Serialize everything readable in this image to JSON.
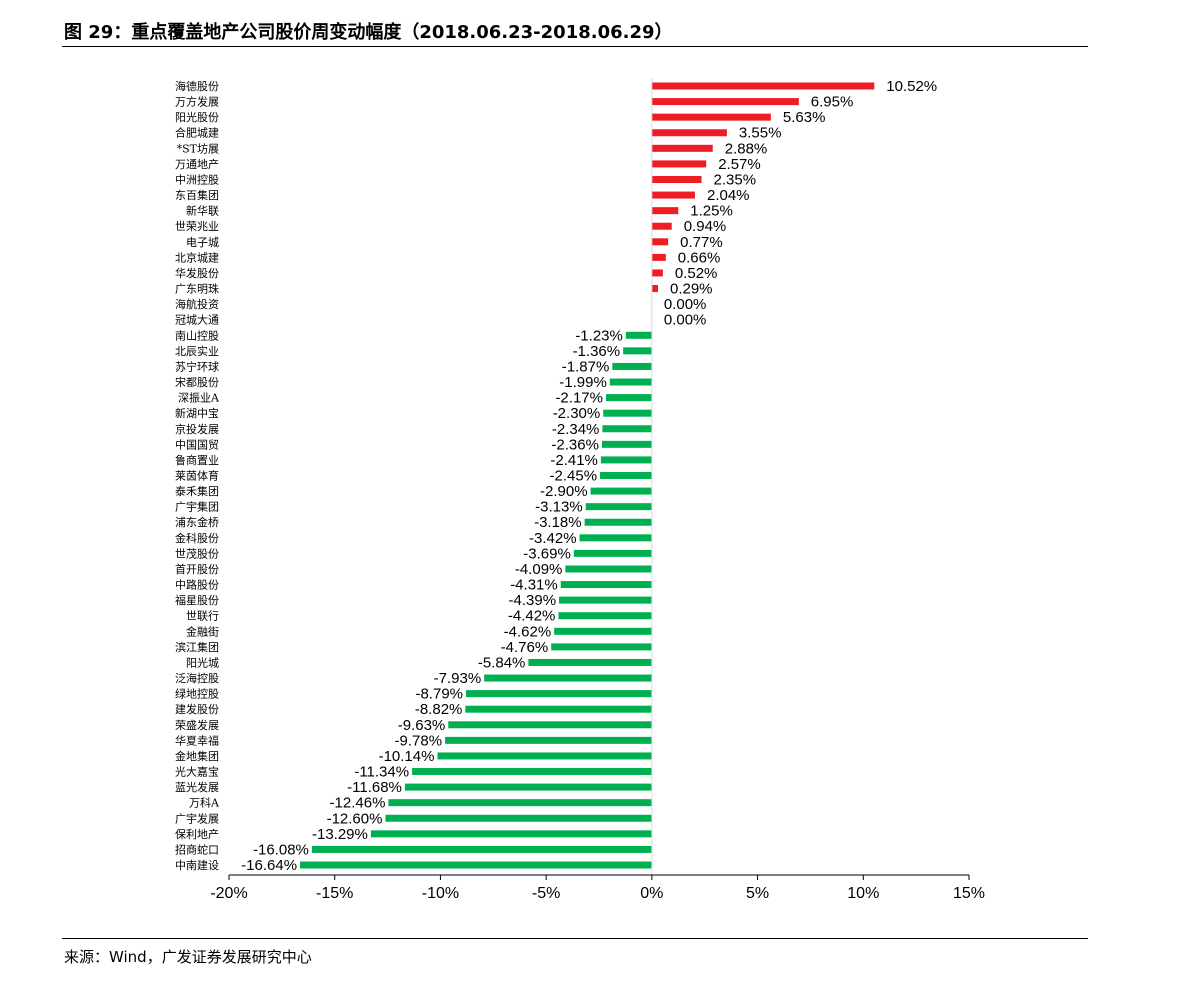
{
  "figure": {
    "title": "图 29：重点覆盖地产公司股价周变动幅度（2018.06.23-2018.06.29）",
    "source": "来源：Wind，广发证券发展研究中心"
  },
  "chart_data": {
    "type": "bar",
    "orientation": "horizontal",
    "xlim": [
      -20,
      15
    ],
    "xticks": [
      "-20%",
      "-15%",
      "-10%",
      "-5%",
      "0%",
      "5%",
      "10%",
      "15%"
    ],
    "xtick_values": [
      -20,
      -15,
      -10,
      -5,
      0,
      5,
      10,
      15
    ],
    "grid": false,
    "colors": {
      "positive": "#ee1c25",
      "negative": "#00b050"
    },
    "categories": [
      "海德股份",
      "万方发展",
      "阳光股份",
      "合肥城建",
      "*ST坊展",
      "万通地产",
      "中洲控股",
      "东百集团",
      "新华联",
      "世荣兆业",
      "电子城",
      "北京城建",
      "华发股份",
      "广东明珠",
      "海航投资",
      "冠城大通",
      "南山控股",
      "北辰实业",
      "苏宁环球",
      "宋都股份",
      "深振业A",
      "新湖中宝",
      "京投发展",
      "中国国贸",
      "鲁商置业",
      "莱茵体育",
      "泰禾集团",
      "广宇集团",
      "浦东金桥",
      "金科股份",
      "世茂股份",
      "首开股份",
      "中路股份",
      "福星股份",
      "世联行",
      "金融街",
      "滨江集团",
      "阳光城",
      "泛海控股",
      "绿地控股",
      "建发股份",
      "荣盛发展",
      "华夏幸福",
      "金地集团",
      "光大嘉宝",
      "蓝光发展",
      "万科A",
      "广宇发展",
      "保利地产",
      "招商蛇口",
      "中南建设"
    ],
    "values": [
      10.52,
      6.95,
      5.63,
      3.55,
      2.88,
      2.57,
      2.35,
      2.04,
      1.25,
      0.94,
      0.77,
      0.66,
      0.52,
      0.29,
      0.0,
      0.0,
      -1.23,
      -1.36,
      -1.87,
      -1.99,
      -2.17,
      -2.3,
      -2.34,
      -2.36,
      -2.41,
      -2.45,
      -2.9,
      -3.13,
      -3.18,
      -3.42,
      -3.69,
      -4.09,
      -4.31,
      -4.39,
      -4.42,
      -4.62,
      -4.76,
      -5.84,
      -7.93,
      -8.79,
      -8.82,
      -9.63,
      -9.78,
      -10.14,
      -11.34,
      -11.68,
      -12.46,
      -12.6,
      -13.29,
      -16.08,
      -16.64
    ],
    "labels": [
      "10.52%",
      "6.95%",
      "5.63%",
      "3.55%",
      "2.88%",
      "2.57%",
      "2.35%",
      "2.04%",
      "1.25%",
      "0.94%",
      "0.77%",
      "0.66%",
      "0.52%",
      "0.29%",
      "0.00%",
      "0.00%",
      "-1.23%",
      "-1.36%",
      "-1.87%",
      "-1.99%",
      "-2.17%",
      "-2.30%",
      "-2.34%",
      "-2.36%",
      "-2.41%",
      "-2.45%",
      "-2.90%",
      "-3.13%",
      "-3.18%",
      "-3.42%",
      "-3.69%",
      "-4.09%",
      "-4.31%",
      "-4.39%",
      "-4.42%",
      "-4.62%",
      "-4.76%",
      "-5.84%",
      "-7.93%",
      "-8.79%",
      "-8.82%",
      "-9.63%",
      "-9.78%",
      "-10.14%",
      "-11.34%",
      "-11.68%",
      "-12.46%",
      "-12.60%",
      "-13.29%",
      "-16.08%",
      "-16.64%"
    ]
  }
}
